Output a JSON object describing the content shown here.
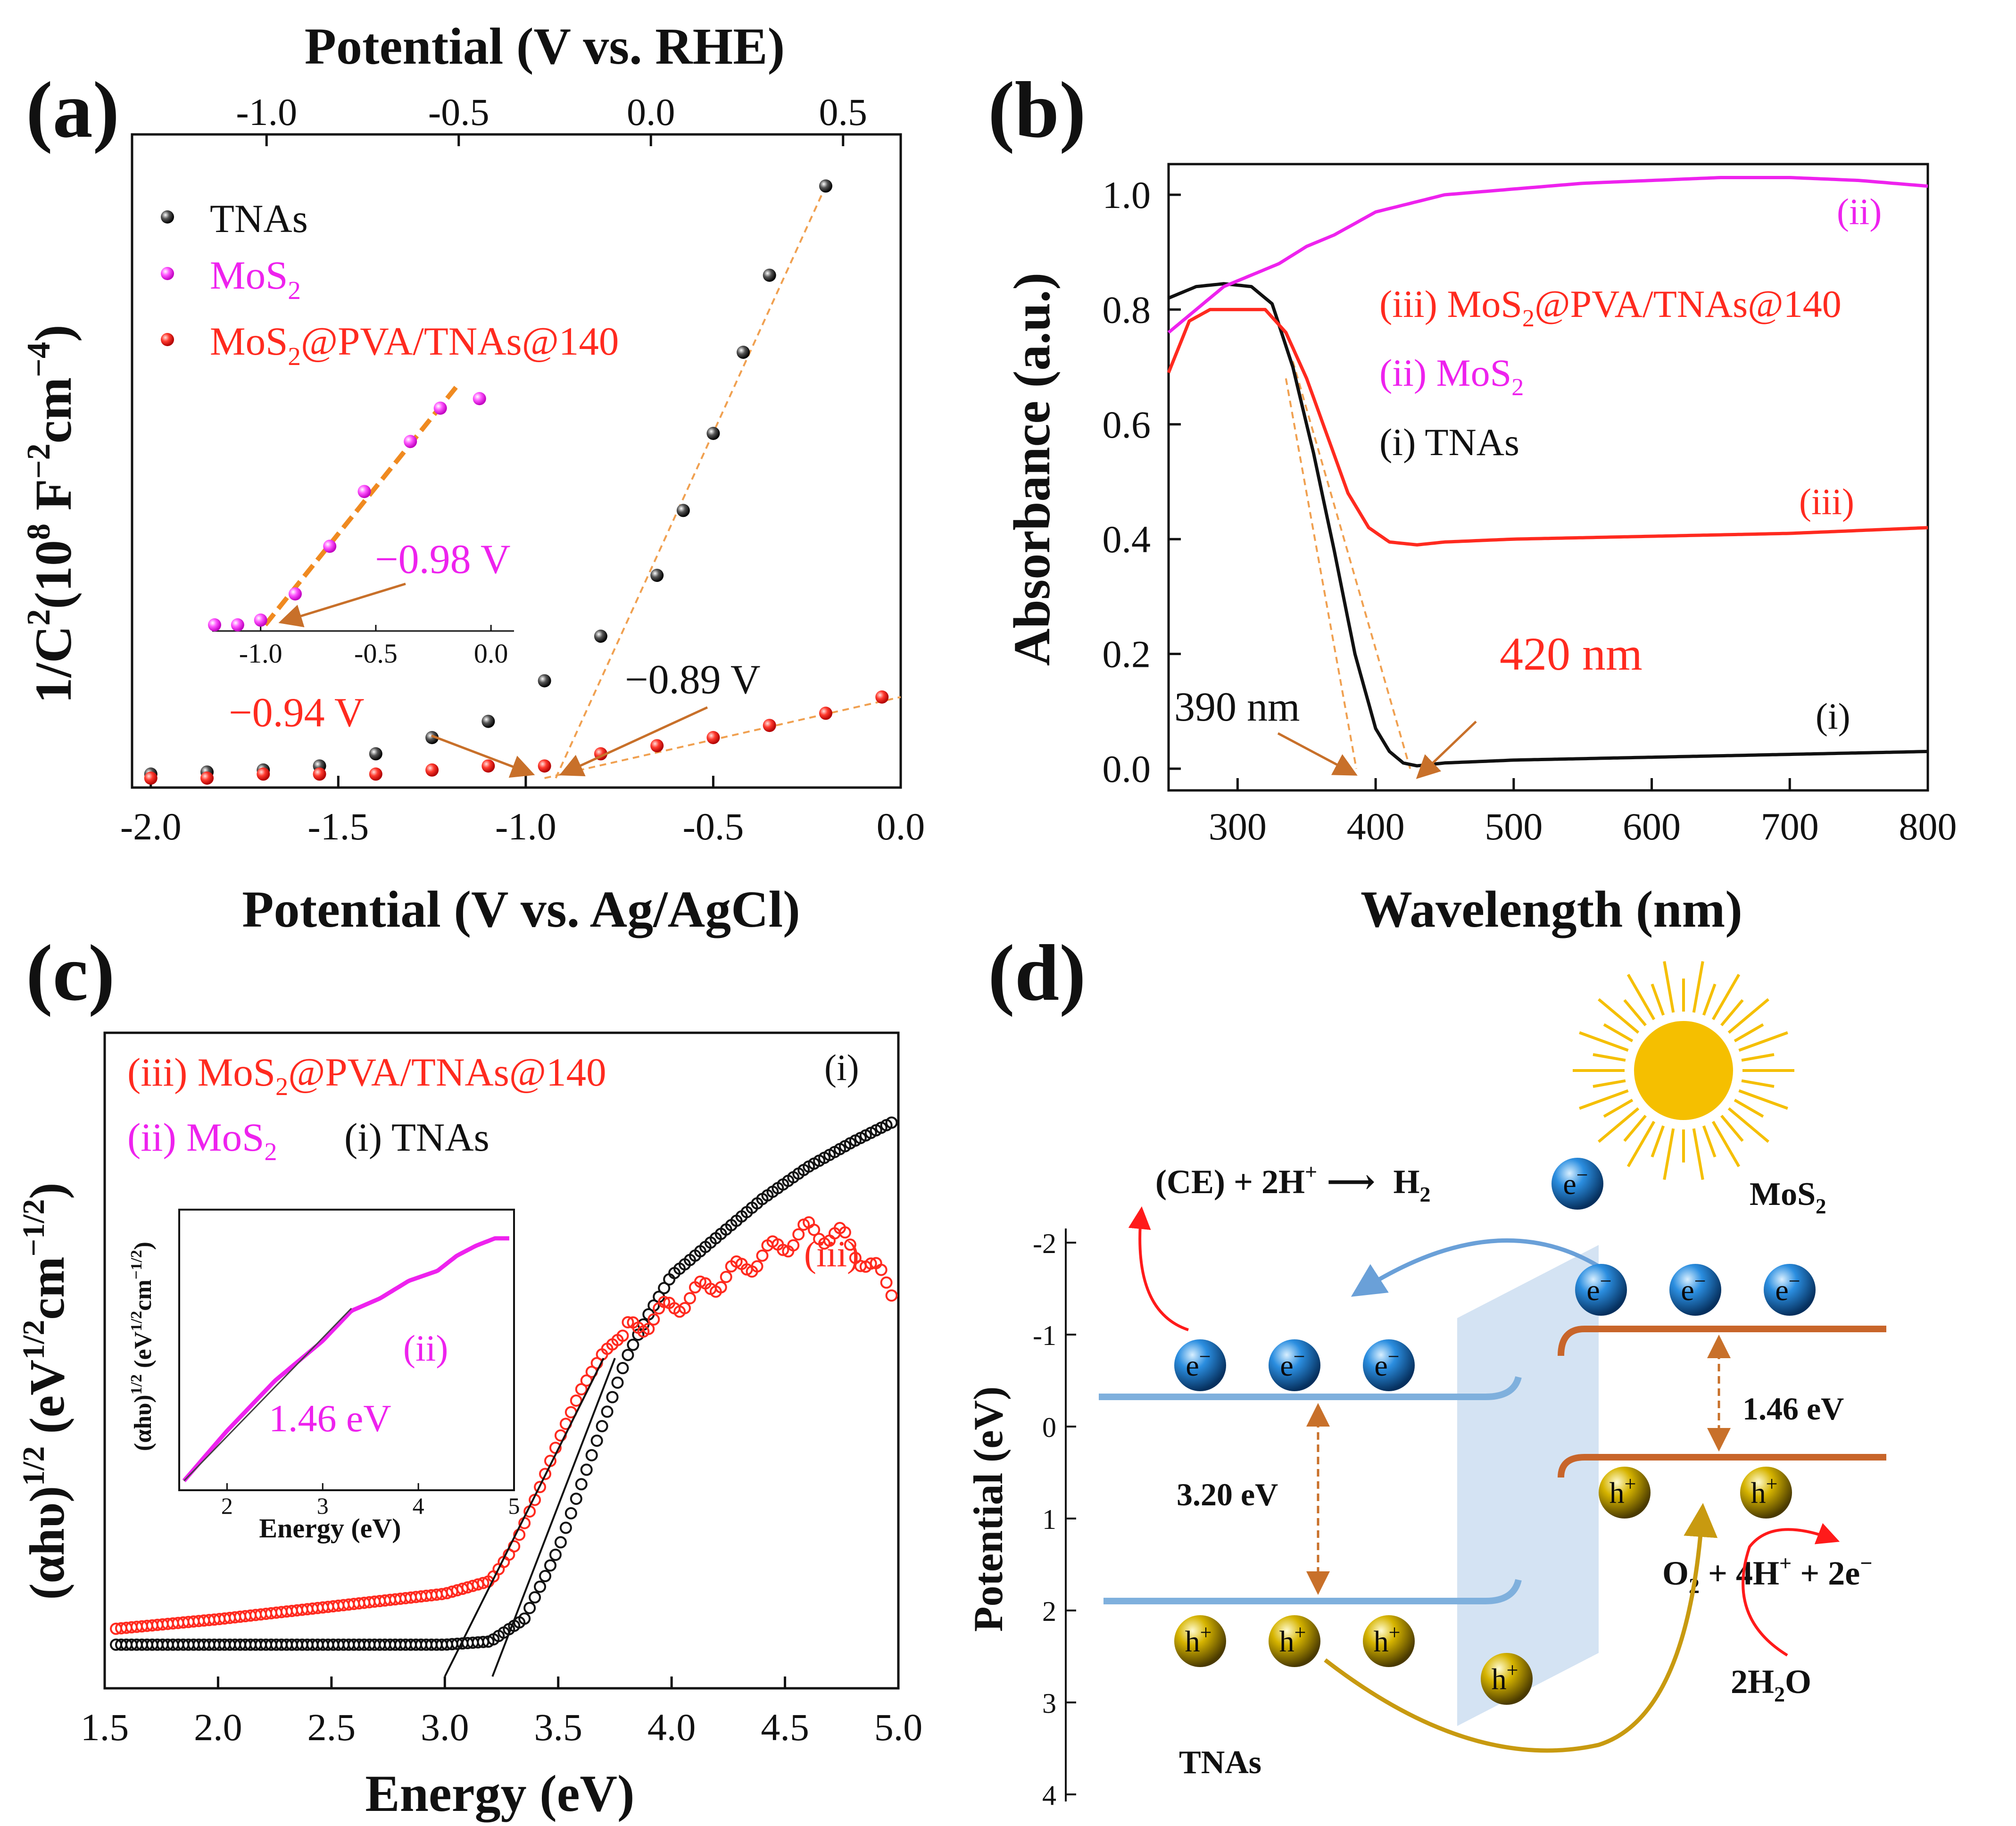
{
  "panels": {
    "a": {
      "label": "(a)",
      "top_axis_title": "Potential (V vs. RHE)",
      "top_ticks": [
        "-1.0",
        "-0.5",
        "0.0",
        "0.5"
      ],
      "bottom_axis_title": "Potential (V vs. Ag/AgCl)",
      "bottom_ticks": [
        "-2.0",
        "-1.5",
        "-1.0",
        "-0.5",
        "0.0"
      ],
      "y_axis_title_main": "1/C",
      "y_axis_title_sup": "2",
      "y_axis_title_rest": "(10",
      "y_axis_title_sup2": "8",
      "y_axis_title_unit": " F",
      "y_axis_title_sup3": "−2",
      "y_axis_title_unit2": "cm",
      "y_axis_title_sup4": "−4",
      "y_axis_title_end": ")",
      "legend": {
        "tnas": "TNAs",
        "mos2_main": "MoS",
        "mos2_sub": "2",
        "comp_main": "MoS",
        "comp_sub": "2",
        "comp_rest": "@PVA/TNAs@140"
      },
      "annotations": {
        "tnas_intercept": "−0.89 V",
        "comp_intercept": "−0.94 V",
        "mos2_intercept": "−0.98 V"
      },
      "inset_ticks": [
        "-1.0",
        "-0.5",
        "0.0"
      ]
    },
    "b": {
      "label": "(b)",
      "x_axis_title": "Wavelength (nm)",
      "x_ticks": [
        "300",
        "400",
        "500",
        "600",
        "700",
        "800"
      ],
      "y_axis_title": "Absorbance (a.u.)",
      "y_ticks": [
        "0.0",
        "0.2",
        "0.4",
        "0.6",
        "0.8",
        "1.0"
      ],
      "legend": {
        "iii_pre": "(iii) MoS",
        "iii_sub": "2",
        "iii_post": "@PVA/TNAs@140",
        "ii_pre": "(ii) MoS",
        "ii_sub": "2",
        "i": "(i) TNAs"
      },
      "curve_labels": {
        "ii": "(ii)",
        "iii": "(iii)",
        "i": "(i)"
      },
      "annotations": {
        "edge_tnas": "390 nm",
        "edge_comp": "420 nm"
      }
    },
    "c": {
      "label": "(c)",
      "x_axis_title": "Energy (eV)",
      "x_ticks": [
        "1.5",
        "2.0",
        "2.5",
        "3.0",
        "3.5",
        "4.0",
        "4.5",
        "5.0"
      ],
      "y_axis_title_main": "(αhυ)",
      "y_axis_title_sup": "1/2",
      "y_axis_title_rest": " (eV",
      "y_axis_title_sup2": "1/2",
      "y_axis_title_unit": "cm",
      "y_axis_title_sup3": "−1/2",
      "y_axis_title_end": ")",
      "legend": {
        "iii_pre": "(iii) MoS",
        "iii_sub": "2",
        "iii_post": "@PVA/TNAs@140",
        "ii_pre": "(ii) MoS",
        "ii_sub": "2",
        "i": "(i) TNAs"
      },
      "curve_labels": {
        "i": "(i)",
        "iii": "(iii)"
      },
      "inset": {
        "curve_label": "(ii)",
        "band_gap": "1.46 eV",
        "x_title": "Energy (eV)",
        "x_ticks": [
          "2",
          "3",
          "4",
          "5"
        ],
        "y_title_main": "(αhυ)",
        "y_title_sup": "1/2",
        "y_title_rest": " (eV",
        "y_title_sup2": "1/2",
        "y_title_unit": "cm",
        "y_title_sup3": "−1/2",
        "y_title_end": ")"
      }
    },
    "d": {
      "label": "(d)",
      "y_axis_title": "Potential (eV)",
      "y_ticks": [
        "-2",
        "-1",
        "0",
        "1",
        "2",
        "3",
        "4"
      ],
      "reaction_h2_pre": "(CE) + 2H",
      "reaction_h2_sup": "+",
      "reaction_h2_arrow": "⟶",
      "reaction_h2_prod": " H",
      "reaction_h2_sub": "2",
      "reaction_o2_pre": "O",
      "reaction_o2_sub": "2",
      "reaction_o2_mid": " + 4H",
      "reaction_o2_sup": "+",
      "reaction_o2_end": " + 2e",
      "reaction_o2_sup2": "−",
      "water_pre": "2H",
      "water_sub": "2",
      "water_end": "O",
      "mos2_label_pre": "MoS",
      "mos2_label_sub": "2",
      "tnas_label": "TNAs",
      "gap_tnas": "3.20 eV",
      "gap_mos2": "1.46 eV",
      "electron": "e",
      "electron_sup": "−",
      "hole": "h",
      "hole_sup": "+"
    }
  },
  "colors": {
    "black": "#111111",
    "red": "#ff2a1f",
    "magenta": "#ee22ee",
    "orange_dash": "#f0a050",
    "brown_arrow": "#c8702a",
    "band_blue": "#7fb0dd",
    "band_orange": "#c8652a",
    "sun": "#f5bf00",
    "electron": "#1a7ad0",
    "hole": "#c8a800"
  },
  "chart_data": [
    {
      "panel": "a",
      "type": "scatter",
      "title": "",
      "xlabel": "Potential (V vs. Ag/AgCl)",
      "x2label": "Potential (V vs. RHE)",
      "ylabel": "1/C2(108 F−2cm−4)",
      "xlim": [
        -2.05,
        0.0
      ],
      "x2lim": [
        -1.35,
        0.65
      ],
      "ylim": [
        0,
        1.5
      ],
      "series": [
        {
          "name": "TNAs",
          "x": [
            -2.0,
            -1.85,
            -1.7,
            -1.55,
            -1.4,
            -1.25,
            -1.1,
            -0.95,
            -0.8,
            -0.65,
            -0.58,
            -0.5,
            -0.42,
            -0.35,
            -0.2
          ],
          "y": [
            0.01,
            0.015,
            0.02,
            0.03,
            0.06,
            0.1,
            0.14,
            0.24,
            0.35,
            0.5,
            0.66,
            0.85,
            1.05,
            1.24,
            1.46
          ]
        },
        {
          "name": "MoS2@PVA/TNAs@140",
          "x": [
            -2.0,
            -1.85,
            -1.7,
            -1.55,
            -1.4,
            -1.25,
            -1.1,
            -0.95,
            -0.8,
            -0.65,
            -0.5,
            -0.35,
            -0.2,
            -0.05
          ],
          "y": [
            0.0,
            0.0,
            0.01,
            0.01,
            0.01,
            0.02,
            0.03,
            0.03,
            0.06,
            0.08,
            0.1,
            0.13,
            0.16,
            0.2
          ]
        }
      ],
      "fits": [
        {
          "name": "TNAs fit",
          "x": [
            -0.92,
            -0.2
          ],
          "y": [
            0.0,
            1.46
          ]
        },
        {
          "name": "composite fit",
          "x": [
            -0.95,
            0.0
          ],
          "y": [
            0.0,
            0.2
          ]
        }
      ],
      "annotations": [
        "−0.89 V",
        "−0.94 V"
      ],
      "inset": {
        "type": "scatter",
        "xlim": [
          -1.2,
          0.1
        ],
        "ylim": [
          0,
          1.0
        ],
        "series": [
          {
            "name": "MoS2",
            "x": [
              -1.2,
              -1.1,
              -1.0,
              -0.85,
              -0.7,
              -0.55,
              -0.35,
              -0.22,
              -0.05
            ],
            "y": [
              0.0,
              0.0,
              0.02,
              0.13,
              0.33,
              0.56,
              0.77,
              0.91,
              0.95
            ]
          }
        ],
        "fit": {
          "x": [
            -0.98,
            -0.15
          ],
          "y": [
            0.0,
            1.0
          ]
        },
        "annotation": "−0.98 V"
      }
    },
    {
      "panel": "b",
      "type": "line",
      "title": "",
      "xlabel": "Wavelength (nm)",
      "ylabel": "Absorbance (a.u.)",
      "xlim": [
        250,
        800
      ],
      "ylim": [
        -0.02,
        1.05
      ],
      "series": [
        {
          "name": "(i) TNAs",
          "x": [
            250,
            270,
            290,
            310,
            325,
            340,
            355,
            370,
            385,
            400,
            410,
            420,
            430,
            450,
            500,
            600,
            700,
            800
          ],
          "y": [
            0.82,
            0.84,
            0.845,
            0.84,
            0.81,
            0.7,
            0.55,
            0.38,
            0.2,
            0.07,
            0.03,
            0.01,
            0.005,
            0.01,
            0.015,
            0.02,
            0.025,
            0.03
          ]
        },
        {
          "name": "(ii) MoS2",
          "x": [
            250,
            270,
            290,
            310,
            330,
            350,
            370,
            400,
            450,
            500,
            550,
            600,
            650,
            700,
            750,
            800
          ],
          "y": [
            0.76,
            0.8,
            0.84,
            0.86,
            0.88,
            0.91,
            0.93,
            0.97,
            1.0,
            1.01,
            1.02,
            1.025,
            1.03,
            1.03,
            1.025,
            1.015
          ]
        },
        {
          "name": "(iii) MoS2@PVA/TNAs@140",
          "x": [
            250,
            265,
            280,
            300,
            320,
            335,
            350,
            365,
            380,
            395,
            410,
            430,
            450,
            500,
            600,
            700,
            800
          ],
          "y": [
            0.69,
            0.78,
            0.8,
            0.8,
            0.8,
            0.76,
            0.68,
            0.58,
            0.48,
            0.42,
            0.395,
            0.39,
            0.395,
            0.4,
            0.405,
            0.41,
            0.42
          ]
        }
      ],
      "fits": [
        {
          "name": "TNAs edge",
          "x": [
            335,
            386
          ],
          "y": [
            0.68,
            0.0
          ]
        },
        {
          "name": "composite edge",
          "x": [
            340,
            425
          ],
          "y": [
            0.71,
            0.0
          ]
        }
      ],
      "annotations": [
        "390 nm",
        "420 nm"
      ]
    },
    {
      "panel": "c",
      "type": "scatter",
      "title": "",
      "xlabel": "Energy (eV)",
      "ylabel": "(αhυ)1/2 (eV1/2cm−1/2)",
      "xlim": [
        1.5,
        5.0
      ],
      "ylim": [
        0,
        1.0
      ],
      "series": [
        {
          "name": "(i) TNAs",
          "x": [
            1.55,
            2.0,
            2.5,
            3.0,
            3.2,
            3.35,
            3.5,
            3.6,
            3.7,
            3.8,
            3.9,
            4.0,
            4.2,
            4.4,
            4.6,
            4.8,
            4.97
          ],
          "y": [
            0.05,
            0.05,
            0.05,
            0.05,
            0.055,
            0.09,
            0.2,
            0.3,
            0.4,
            0.5,
            0.57,
            0.63,
            0.69,
            0.75,
            0.8,
            0.84,
            0.87
          ]
        },
        {
          "name": "(iii) MoS2@PVA/TNAs@140",
          "x": [
            1.55,
            2.0,
            2.5,
            3.0,
            3.2,
            3.3,
            3.4,
            3.5,
            3.6,
            3.7,
            3.8,
            3.9,
            4.0,
            4.2,
            4.4,
            4.6,
            4.75,
            4.97
          ],
          "y": [
            0.075,
            0.09,
            0.11,
            0.13,
            0.15,
            0.2,
            0.28,
            0.37,
            0.45,
            0.51,
            0.54,
            0.56,
            0.58,
            0.62,
            0.66,
            0.7,
            0.69,
            0.61
          ]
        }
      ],
      "fits": [
        {
          "name": "TNAs tangent",
          "x": [
            3.21,
            3.75
          ],
          "y": [
            0.0,
            0.5
          ]
        },
        {
          "name": "composite tangent",
          "x": [
            3.0,
            3.7
          ],
          "y": [
            0.0,
            0.5
          ]
        }
      ],
      "inset": {
        "type": "line",
        "xlabel": "Energy (eV)",
        "xlim": [
          1.5,
          5.0
        ],
        "ylim": [
          0,
          1.0
        ],
        "series": [
          {
            "name": "(ii) MoS2",
            "x": [
              1.55,
              2.0,
              2.5,
              3.0,
              3.3,
              3.6,
              3.9,
              4.2,
              4.4,
              4.6,
              4.8,
              4.95
            ],
            "y": [
              0.0,
              0.2,
              0.4,
              0.56,
              0.68,
              0.73,
              0.8,
              0.84,
              0.9,
              0.94,
              0.97,
              0.97
            ]
          }
        ],
        "fit": {
          "x": [
            1.55,
            3.3
          ],
          "y": [
            0.0,
            0.69
          ]
        },
        "annotation": "1.46 eV"
      }
    }
  ]
}
